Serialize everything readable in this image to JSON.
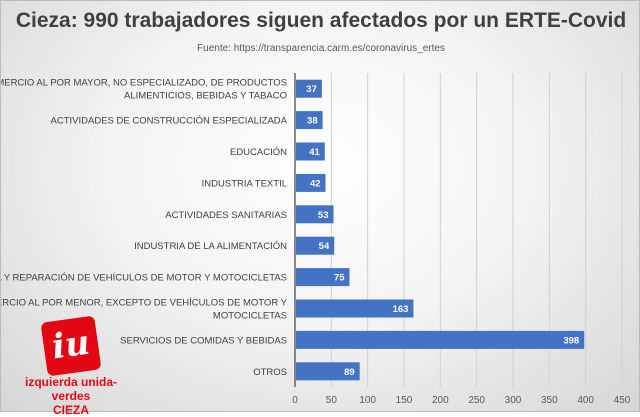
{
  "chart_data": {
    "type": "bar",
    "orientation": "horizontal",
    "title": "Cieza: 990 trabajadores siguen afectados por un ERTE-Covid",
    "subtitle": "Fuente: https://transparencia.carm.es/coronavirus_ertes",
    "categories": [
      [
        "COMERCIO AL POR MAYOR, NO ESPECIALIZADO, DE PRODUCTOS",
        "ALIMENTICIOS, BEBIDAS Y TABACO"
      ],
      [
        "ACTIVIDADES DE CONSTRUCCIÓN ESPECIALIZADA"
      ],
      [
        "EDUCACIÓN"
      ],
      [
        "INDUSTRIA TEXTIL"
      ],
      [
        "ACTIVIDADES SANITARIAS"
      ],
      [
        "INDUSTRIA DE LA ALIMENTACIÓN"
      ],
      [
        "VENTA Y REPARACIÓN DE VEHÍCULOS DE MOTOR Y MOTOCICLETAS"
      ],
      [
        "COMERCIO AL POR MENOR, EXCEPTO DE VEHÍCULOS DE MOTOR Y",
        "MOTOCICLETAS"
      ],
      [
        "SERVICIOS DE COMIDAS Y BEBIDAS"
      ],
      [
        "OTROS"
      ]
    ],
    "values": [
      37,
      38,
      41,
      42,
      53,
      54,
      75,
      163,
      398,
      89
    ],
    "xlim": [
      0,
      450
    ],
    "xticks": [
      0,
      50,
      100,
      150,
      200,
      250,
      300,
      350,
      400,
      450
    ],
    "grid": true,
    "data_labels": true,
    "bar_color": "#4472c4"
  },
  "logo": {
    "mark": "iu",
    "line1": "izquierda unida-verdes",
    "line2": "CIEZA",
    "color": "#e30613"
  }
}
